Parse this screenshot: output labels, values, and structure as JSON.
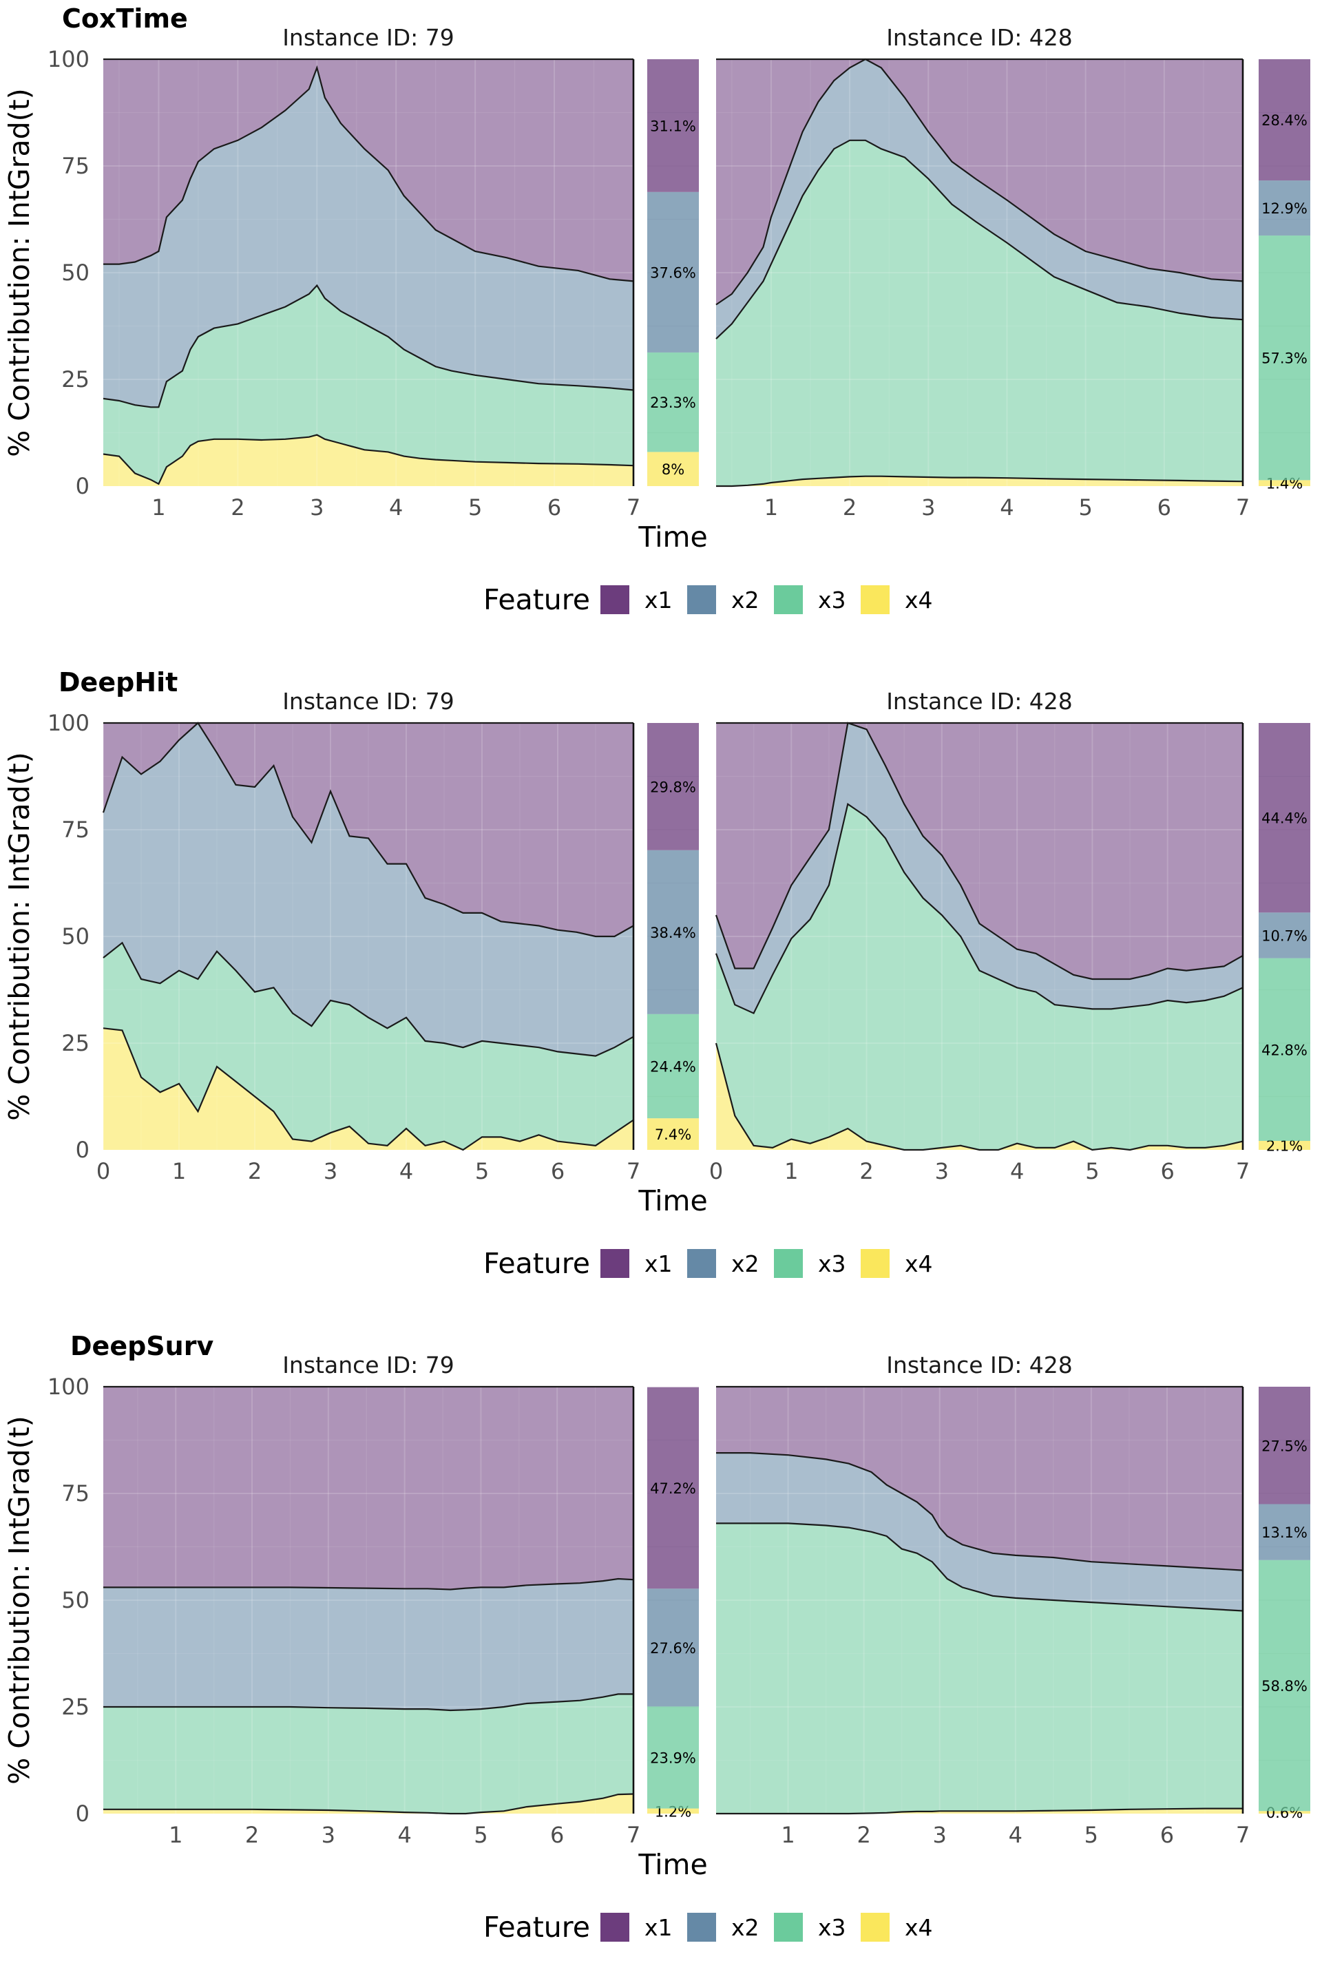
{
  "colors": {
    "x1": "#6c3d7d",
    "x2": "#6589a6",
    "x3": "#6bcb9c",
    "x4": "#fae75c"
  },
  "legend": {
    "title": "Feature",
    "items": [
      "x1",
      "x2",
      "x3",
      "x4"
    ]
  },
  "chart_data": [
    {
      "type": "area",
      "model": "CoxTime",
      "ylabel": "% Contribution: IntGrad(t)",
      "xlabel": "Time",
      "yticks": [
        0,
        25,
        50,
        75,
        100
      ],
      "ylim": [
        0,
        100
      ],
      "grid": true,
      "legend_position": "bottom",
      "panels": [
        {
          "strip": "Instance ID: 79",
          "xlim": [
            0.3,
            7
          ],
          "xticks": [
            1,
            2,
            3,
            4,
            5,
            6,
            7
          ],
          "x": [
            0.3,
            0.5,
            0.7,
            0.9,
            1.0,
            1.1,
            1.3,
            1.4,
            1.5,
            1.7,
            2.0,
            2.3,
            2.6,
            2.9,
            3.0,
            3.1,
            3.3,
            3.6,
            3.9,
            4.1,
            4.3,
            4.5,
            4.7,
            5.0,
            5.4,
            5.8,
            6.3,
            6.7,
            7.0
          ],
          "boundaries": {
            "x4": [
              7.5,
              7,
              3,
              1.5,
              0.5,
              4.5,
              7,
              9.5,
              10.5,
              11,
              11,
              10.8,
              11,
              11.5,
              12,
              11,
              10,
              8.5,
              8,
              7,
              6.5,
              6.2,
              6,
              5.7,
              5.5,
              5.3,
              5.2,
              5,
              4.8
            ],
            "x3": [
              20.5,
              20,
              19,
              18.5,
              18.5,
              24.5,
              27,
              32,
              35,
              37,
              38,
              40,
              42,
              45,
              47,
              44,
              41,
              38,
              35,
              32,
              30,
              28,
              27,
              26,
              25,
              24,
              23.5,
              23,
              22.5
            ],
            "x2": [
              52,
              52,
              52.5,
              54,
              55,
              63,
              67,
              72,
              76,
              79,
              81,
              84,
              88,
              93,
              98,
              91,
              85,
              79,
              74,
              68,
              64,
              60,
              58,
              55,
              53.5,
              51.5,
              50.5,
              48.5,
              48
            ]
          },
          "shares": [
            {
              "feature": "x1",
              "pct": 31.1,
              "label": "31.1%"
            },
            {
              "feature": "x2",
              "pct": 37.6,
              "label": "37.6%"
            },
            {
              "feature": "x3",
              "pct": 23.3,
              "label": "23.3%"
            },
            {
              "feature": "x4",
              "pct": 8.0,
              "label": "8%"
            }
          ]
        },
        {
          "strip": "Instance ID: 428",
          "xlim": [
            0.3,
            7
          ],
          "xticks": [
            1,
            2,
            3,
            4,
            5,
            6,
            7
          ],
          "x": [
            0.3,
            0.5,
            0.7,
            0.9,
            1.0,
            1.2,
            1.4,
            1.6,
            1.8,
            2.0,
            2.2,
            2.4,
            2.7,
            3.0,
            3.3,
            3.6,
            4.0,
            4.3,
            4.6,
            5.0,
            5.4,
            5.8,
            6.2,
            6.6,
            7.0
          ],
          "boundaries": {
            "x4": [
              0,
              0,
              0.2,
              0.5,
              0.8,
              1.2,
              1.6,
              1.8,
              2.0,
              2.2,
              2.3,
              2.3,
              2.2,
              2.1,
              2.0,
              2.0,
              1.9,
              1.8,
              1.7,
              1.6,
              1.5,
              1.4,
              1.3,
              1.2,
              1.1
            ],
            "x3": [
              34.5,
              38,
              43,
              48,
              52,
              60,
              68,
              74,
              79,
              81,
              81,
              79,
              77,
              72,
              66,
              62,
              57,
              53,
              49,
              46,
              43,
              42,
              40.5,
              39.5,
              39
            ],
            "x2": [
              42.5,
              45,
              50,
              56,
              63,
              73,
              83,
              90,
              95,
              98,
              100,
              98,
              91,
              83,
              76,
              72,
              67,
              63,
              59,
              55,
              53,
              51,
              50,
              48.5,
              48
            ]
          },
          "shares": [
            {
              "feature": "x1",
              "pct": 28.4,
              "label": "28.4%"
            },
            {
              "feature": "x2",
              "pct": 12.9,
              "label": "12.9%"
            },
            {
              "feature": "x3",
              "pct": 57.3,
              "label": "57.3%"
            },
            {
              "feature": "x4",
              "pct": 1.4,
              "label": "1.4%"
            }
          ]
        }
      ]
    },
    {
      "type": "area",
      "model": "DeepHit",
      "ylabel": "% Contribution: IntGrad(t)",
      "xlabel": "Time",
      "yticks": [
        0,
        25,
        50,
        75,
        100
      ],
      "ylim": [
        0,
        100
      ],
      "grid": true,
      "legend_position": "bottom",
      "panels": [
        {
          "strip": "Instance ID: 79",
          "xlim": [
            0,
            7
          ],
          "xticks": [
            0,
            1,
            2,
            3,
            4,
            5,
            6,
            7
          ],
          "x": [
            0,
            0.25,
            0.5,
            0.75,
            1.0,
            1.25,
            1.5,
            1.75,
            2.0,
            2.25,
            2.5,
            2.75,
            3.0,
            3.25,
            3.5,
            3.75,
            4.0,
            4.25,
            4.5,
            4.75,
            5.0,
            5.25,
            5.5,
            5.75,
            6.0,
            6.25,
            6.5,
            6.75,
            7.0
          ],
          "boundaries": {
            "x4": [
              28.5,
              28,
              17,
              13.5,
              15.5,
              9,
              19.5,
              16,
              12.5,
              9,
              2.5,
              2,
              4,
              5.5,
              1.5,
              1,
              5,
              1,
              2,
              0,
              3,
              3,
              2,
              3.5,
              2,
              1.5,
              1,
              4,
              7
            ],
            "x3": [
              45,
              48.5,
              40,
              39,
              42,
              40,
              46.5,
              42,
              37,
              38,
              32,
              29,
              35,
              34,
              31,
              28.5,
              31,
              25.5,
              25,
              24,
              25.5,
              25,
              24.5,
              24,
              23,
              22.5,
              22,
              24,
              26.5
            ],
            "x2": [
              79,
              92,
              88,
              91,
              96,
              100,
              93,
              85.5,
              85,
              90,
              78,
              72,
              84,
              73.5,
              73,
              67,
              67,
              59,
              57.5,
              55.5,
              55.5,
              53.5,
              53,
              52.5,
              51.5,
              51,
              50,
              50,
              52.5
            ]
          },
          "shares": [
            {
              "feature": "x1",
              "pct": 29.8,
              "label": "29.8%"
            },
            {
              "feature": "x2",
              "pct": 38.4,
              "label": "38.4%"
            },
            {
              "feature": "x3",
              "pct": 24.4,
              "label": "24.4%"
            },
            {
              "feature": "x4",
              "pct": 7.4,
              "label": "7.4%"
            }
          ]
        },
        {
          "strip": "Instance ID: 428",
          "xlim": [
            0,
            7
          ],
          "xticks": [
            0,
            1,
            2,
            3,
            4,
            5,
            6,
            7
          ],
          "x": [
            0,
            0.25,
            0.5,
            0.75,
            1.0,
            1.25,
            1.5,
            1.75,
            2.0,
            2.25,
            2.5,
            2.75,
            3.0,
            3.25,
            3.5,
            3.75,
            4.0,
            4.25,
            4.5,
            4.75,
            5.0,
            5.25,
            5.5,
            5.75,
            6.0,
            6.25,
            6.5,
            6.75,
            7.0
          ],
          "boundaries": {
            "x4": [
              25,
              8,
              1,
              0.5,
              2.5,
              1.5,
              3,
              5,
              2,
              1,
              0,
              0,
              0.5,
              1,
              0,
              0,
              1.5,
              0.5,
              0.5,
              2,
              0,
              0.5,
              0,
              1,
              1,
              0.5,
              0.5,
              1,
              2
            ],
            "x3": [
              46,
              34,
              32,
              41,
              49.5,
              54,
              62,
              81,
              78,
              73,
              65,
              59,
              55,
              50,
              42,
              40,
              38,
              37,
              34,
              33.5,
              33,
              33,
              33.5,
              34,
              35,
              34.5,
              35,
              36,
              38
            ],
            "x2": [
              55,
              42.5,
              42.5,
              52,
              62,
              68.5,
              75,
              100,
              98.5,
              90,
              81,
              73.5,
              69,
              62,
              53,
              50,
              47,
              46,
              43.5,
              41,
              40,
              40,
              40,
              41,
              42.5,
              42,
              42.5,
              43,
              45.5
            ]
          },
          "shares": [
            {
              "feature": "x1",
              "pct": 44.4,
              "label": "44.4%"
            },
            {
              "feature": "x2",
              "pct": 10.7,
              "label": "10.7%"
            },
            {
              "feature": "x3",
              "pct": 42.8,
              "label": "42.8%"
            },
            {
              "feature": "x4",
              "pct": 2.1,
              "label": "2.1%"
            }
          ]
        }
      ]
    },
    {
      "type": "area",
      "model": "DeepSurv",
      "ylabel": "% Contribution: IntGrad(t)",
      "xlabel": "Time",
      "yticks": [
        0,
        25,
        50,
        75,
        100
      ],
      "ylim": [
        0,
        100
      ],
      "grid": true,
      "legend_position": "bottom",
      "panels": [
        {
          "strip": "Instance ID: 79",
          "xlim": [
            0.05,
            7
          ],
          "xticks": [
            1,
            2,
            3,
            4,
            5,
            6,
            7
          ],
          "x": [
            0.05,
            0.5,
            1.0,
            1.5,
            2.0,
            2.5,
            3.0,
            3.5,
            4.0,
            4.3,
            4.6,
            4.8,
            5.0,
            5.3,
            5.6,
            6.0,
            6.3,
            6.6,
            6.8,
            7.0
          ],
          "boundaries": {
            "x4": [
              1,
              1,
              1,
              1,
              1,
              0.9,
              0.8,
              0.6,
              0.3,
              0.2,
              0,
              0,
              0.3,
              0.6,
              1.6,
              2.3,
              2.8,
              3.6,
              4.5,
              4.6
            ],
            "x3": [
              25,
              25,
              25,
              25,
              25,
              25,
              24.8,
              24.7,
              24.5,
              24.5,
              24.2,
              24.3,
              24.5,
              25,
              25.8,
              26.2,
              26.5,
              27.3,
              28,
              28
            ],
            "x2": [
              53,
              53,
              53,
              53,
              53,
              53,
              52.9,
              52.8,
              52.7,
              52.7,
              52.5,
              52.8,
              53,
              53,
              53.5,
              53.8,
              54,
              54.5,
              55,
              54.8
            ]
          },
          "shares": [
            {
              "feature": "x1",
              "pct": 47.2,
              "label": "47.2%"
            },
            {
              "feature": "x2",
              "pct": 27.6,
              "label": "27.6%"
            },
            {
              "feature": "x3",
              "pct": 23.9,
              "label": "23.9%"
            },
            {
              "feature": "x4",
              "pct": 1.2,
              "label": "1.2%"
            }
          ]
        },
        {
          "strip": "Instance ID: 428",
          "xlim": [
            0.05,
            7
          ],
          "xticks": [
            1,
            2,
            3,
            4,
            5,
            6,
            7
          ],
          "x": [
            0.05,
            0.5,
            1.0,
            1.5,
            1.8,
            2.1,
            2.3,
            2.5,
            2.7,
            2.9,
            3.0,
            3.1,
            3.3,
            3.5,
            3.7,
            4.0,
            4.5,
            5.0,
            5.5,
            6.0,
            6.5,
            7.0
          ],
          "boundaries": {
            "x4": [
              0,
              0,
              0,
              0,
              0,
              0.1,
              0.2,
              0.4,
              0.5,
              0.5,
              0.6,
              0.6,
              0.6,
              0.6,
              0.6,
              0.6,
              0.7,
              0.8,
              1.0,
              1.1,
              1.2,
              1.2
            ],
            "x3": [
              68,
              68,
              68,
              67.5,
              67,
              66,
              65,
              62,
              61,
              59,
              57,
              55,
              53,
              52,
              51,
              50.5,
              50,
              49.5,
              49,
              48.5,
              48,
              47.5
            ],
            "x2": [
              84.5,
              84.5,
              84,
              83,
              82,
              80,
              77,
              75,
              73,
              70,
              67,
              65,
              63,
              62,
              61,
              60.5,
              60,
              59,
              58.5,
              58,
              57.5,
              57
            ]
          },
          "shares": [
            {
              "feature": "x1",
              "pct": 27.5,
              "label": "27.5%"
            },
            {
              "feature": "x2",
              "pct": 13.1,
              "label": "13.1%"
            },
            {
              "feature": "x3",
              "pct": 58.8,
              "label": "58.8%"
            },
            {
              "feature": "x4",
              "pct": 0.6,
              "label": "0.6%"
            }
          ]
        }
      ]
    }
  ]
}
